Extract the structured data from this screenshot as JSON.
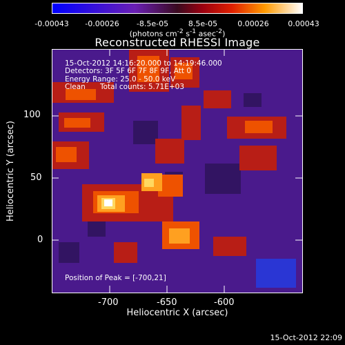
{
  "colorbar": {
    "ticks": [
      "-0.00043",
      "-0.00026",
      "-8.5e-05",
      "8.5e-05",
      "0.00026",
      "0.00043"
    ],
    "units_html": "(photons cm<sup>-2</sup> s<sup>-1</sup> asec<sup>-2</sup>)"
  },
  "title": "Reconstructed RHESSI Image",
  "info": {
    "time_range": "15-Oct-2012 14:16:20.000 to 14:19:46.000",
    "detectors": "Detectors: 3F 5F 6F 7F 8F 9F, Att 0",
    "energy": "Energy Range: 25.0 - 50.0 keV",
    "algorithm": "Clean",
    "counts": "Total counts: 5.71E+03",
    "peak": "Position of Peak = [-700,21]"
  },
  "axes": {
    "xlabel": "Heliocentric X (arcsec)",
    "ylabel": "Heliocentric Y (arcsec)",
    "xticks": [
      "-700",
      "-650",
      "-600"
    ],
    "yticks": [
      "100",
      "50",
      "0"
    ]
  },
  "timestamp": "15-Oct-2012 22:09",
  "colors": {
    "colormap": [
      "#0000ff",
      "#5a1ea0",
      "#7a2aa8",
      "#b02030",
      "#e03a00",
      "#ff7a00",
      "#ffd040",
      "#ffffff"
    ]
  }
}
